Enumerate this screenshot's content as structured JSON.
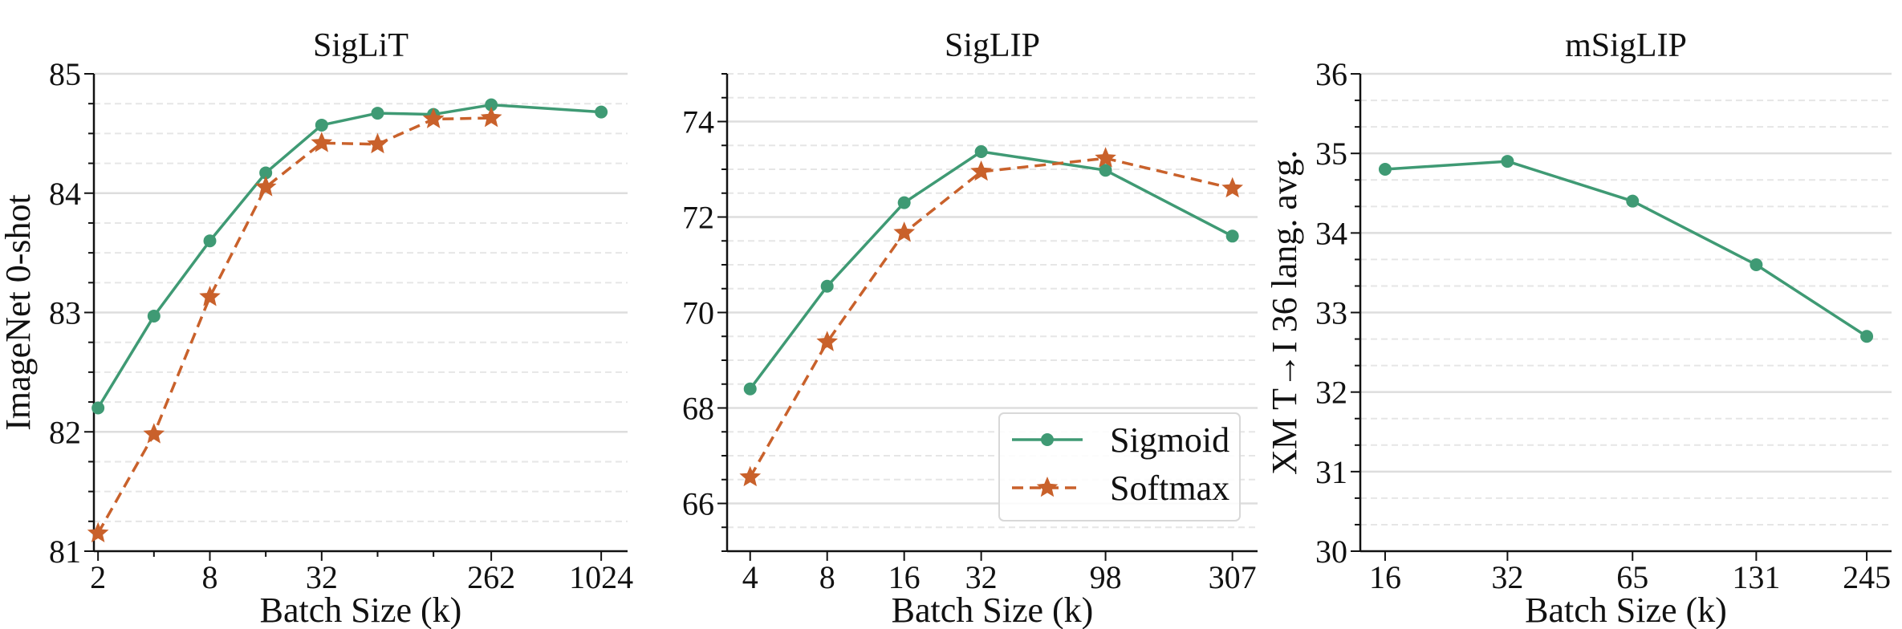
{
  "colors": {
    "sigmoid": "#3f9a74",
    "softmax": "#c9612b",
    "grid": "#dddddd",
    "axis": "#111111"
  },
  "legend": {
    "placement": "lower-right",
    "entries": [
      {
        "label": "Sigmoid",
        "marker": "circle",
        "line": "solid",
        "color": "#3f9a74"
      },
      {
        "label": "Softmax",
        "marker": "star",
        "line": "dashed",
        "color": "#c9612b"
      }
    ]
  },
  "chart_data": [
    {
      "type": "line",
      "title": "SigLiT",
      "xlabel": "Batch Size (k)",
      "ylabel": "ImageNet 0-shot",
      "xscale": "log2",
      "xlim": [
        1.9,
        1420
      ],
      "ylim": [
        81,
        85
      ],
      "yticks": [
        81,
        82,
        83,
        84,
        85
      ],
      "yminor_step": 0.25,
      "xticks": [
        2,
        8,
        32,
        262,
        1024
      ],
      "xminor_ticks": [
        4,
        16,
        64,
        128
      ],
      "grid": true,
      "series": [
        {
          "name": "Sigmoid",
          "x": [
            2,
            4,
            8,
            16,
            32,
            64,
            128,
            262,
            1024
          ],
          "y": [
            82.2,
            82.97,
            83.6,
            84.17,
            84.57,
            84.67,
            84.66,
            84.74,
            84.68
          ]
        },
        {
          "name": "Softmax",
          "x": [
            2,
            4,
            8,
            16,
            32,
            64,
            128,
            262
          ],
          "y": [
            81.15,
            81.98,
            83.13,
            84.05,
            84.42,
            84.41,
            84.62,
            84.63
          ]
        }
      ]
    },
    {
      "type": "line",
      "title": "SigLIP",
      "xlabel": "Batch Size (k)",
      "ylabel": "",
      "xscale": "log2",
      "xlim": [
        3.25,
        385
      ],
      "ylim": [
        65,
        75
      ],
      "yticks": [
        66,
        68,
        70,
        72,
        74
      ],
      "yminor_step": 0.5,
      "xticks": [
        4,
        8,
        16,
        32,
        98,
        307
      ],
      "xminor_ticks": [],
      "grid": true,
      "legend": true,
      "series": [
        {
          "name": "Sigmoid",
          "x": [
            4,
            8,
            16,
            32,
            98,
            307
          ],
          "y": [
            68.4,
            70.55,
            72.3,
            73.37,
            72.98,
            71.6
          ]
        },
        {
          "name": "Softmax",
          "x": [
            4,
            8,
            16,
            32,
            98,
            307
          ],
          "y": [
            66.55,
            69.38,
            71.67,
            72.95,
            73.23,
            72.6
          ]
        }
      ]
    },
    {
      "type": "line",
      "title": "mSigLIP",
      "xlabel": "Batch Size (k)",
      "ylabel": "XM T→I 36 lang. avg.",
      "xscale": "log2",
      "xlim": [
        13.9,
        282
      ],
      "ylim": [
        30,
        36
      ],
      "yticks": [
        30,
        31,
        32,
        33,
        34,
        35,
        36
      ],
      "yminor_step": 0.3333,
      "xticks": [
        16,
        32,
        65,
        131,
        245
      ],
      "xminor_ticks": [],
      "grid": true,
      "series": [
        {
          "name": "Sigmoid",
          "x": [
            16,
            32,
            65,
            131,
            245
          ],
          "y": [
            34.8,
            34.9,
            34.4,
            33.6,
            32.7
          ]
        }
      ]
    }
  ]
}
